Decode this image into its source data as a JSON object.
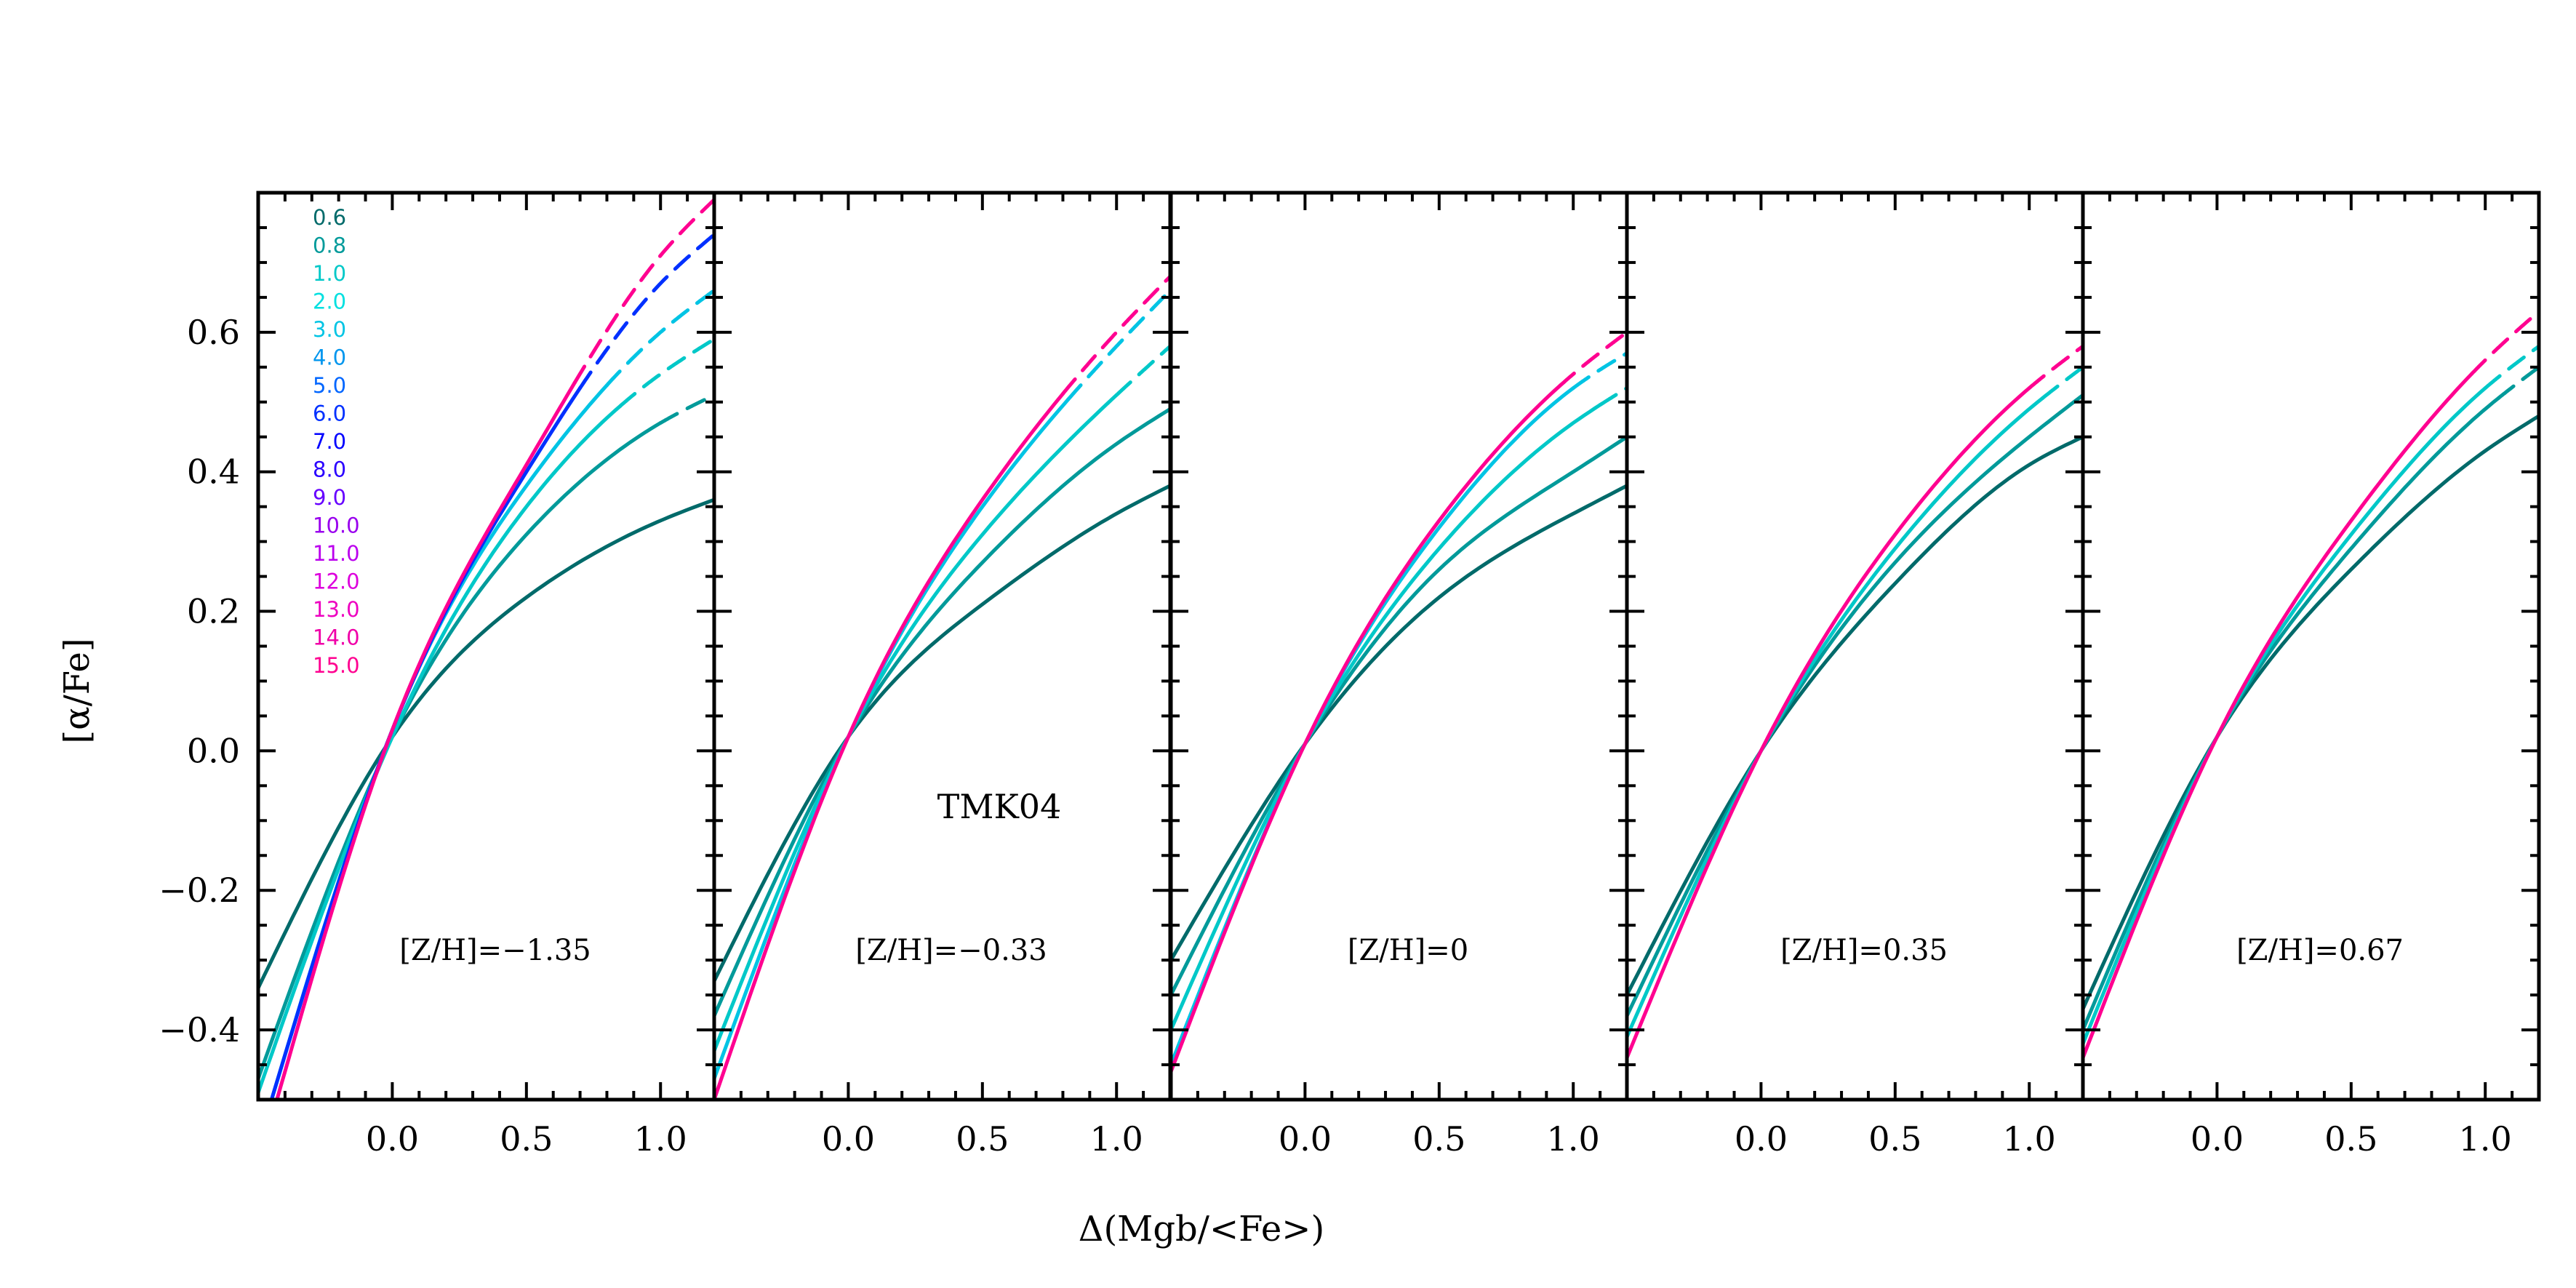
{
  "chart_data": {
    "type": "line",
    "xlabel": "Δ(Mgb/<Fe>)",
    "ylabel": "[α/Fe]",
    "xlim": [
      -0.5,
      1.2
    ],
    "ylim": [
      -0.5,
      0.8
    ],
    "xticks": [
      0.0,
      0.5,
      1.0
    ],
    "xtick_labels": [
      "0.0",
      "0.5",
      "1.0"
    ],
    "yticks": [
      -0.4,
      -0.2,
      0.0,
      0.2,
      0.4,
      0.6
    ],
    "ytick_labels": [
      "−0.4",
      "−0.2",
      "0.0",
      "0.2",
      "0.4",
      "0.6"
    ],
    "annotation": "TMK04",
    "legend": {
      "placement": "top-left",
      "entries": [
        "0.6",
        "0.8",
        "1.0",
        "2.0",
        "3.0",
        "4.0",
        "5.0",
        "6.0",
        "7.0",
        "8.0",
        "9.0",
        "10.0",
        "11.0",
        "12.0",
        "13.0",
        "14.0",
        "15.0"
      ],
      "colors": [
        "#006a6a",
        "#009a9a",
        "#00c8c8",
        "#00e0e0",
        "#00c4e4",
        "#0096ee",
        "#0066ff",
        "#0030ff",
        "#0000ff",
        "#2a00ff",
        "#6600ff",
        "#9900ee",
        "#bb00ee",
        "#dd00dd",
        "#ee00c0",
        "#f000a8",
        "#ff0090"
      ]
    },
    "panels": [
      {
        "label": "[Z/H]=−1.35",
        "series": [
          {
            "name": "0.6",
            "points": [
              [
                -0.5,
                -0.34
              ],
              [
                0.0,
                0.02
              ],
              [
                0.5,
                0.22
              ],
              [
                1.0,
                0.33
              ],
              [
                1.2,
                0.36
              ]
            ],
            "dashed_from_x": null
          },
          {
            "name": "0.8",
            "points": [
              [
                -0.5,
                -0.47
              ],
              [
                0.0,
                0.02
              ],
              [
                0.5,
                0.31
              ],
              [
                1.0,
                0.47
              ],
              [
                1.2,
                0.51
              ]
            ],
            "dashed_from_x": 1.0
          },
          {
            "name": "1.0",
            "points": [
              [
                -0.5,
                -0.49
              ],
              [
                0.0,
                0.02
              ],
              [
                0.5,
                0.35
              ],
              [
                1.0,
                0.54
              ],
              [
                1.2,
                0.59
              ]
            ],
            "dashed_from_x": 0.85
          },
          {
            "name": "3.0",
            "points": [
              [
                -0.45,
                -0.5
              ],
              [
                0.0,
                0.03
              ],
              [
                0.5,
                0.38
              ],
              [
                1.0,
                0.6
              ],
              [
                1.2,
                0.66
              ]
            ],
            "dashed_from_x": 0.8
          },
          {
            "name": "6.0",
            "points": [
              [
                -0.45,
                -0.5
              ],
              [
                0.0,
                0.03
              ],
              [
                0.5,
                0.4
              ],
              [
                1.0,
                0.67
              ],
              [
                1.2,
                0.74
              ]
            ],
            "dashed_from_x": 0.7
          },
          {
            "name": "15.0",
            "points": [
              [
                -0.43,
                -0.5
              ],
              [
                0.0,
                0.03
              ],
              [
                0.5,
                0.41
              ],
              [
                1.0,
                0.71
              ],
              [
                1.2,
                0.79
              ]
            ],
            "dashed_from_x": 0.68
          }
        ]
      },
      {
        "label": "[Z/H]=−0.33",
        "series": [
          {
            "name": "0.6",
            "points": [
              [
                -0.5,
                -0.33
              ],
              [
                0.0,
                0.02
              ],
              [
                0.5,
                0.21
              ],
              [
                1.0,
                0.34
              ],
              [
                1.2,
                0.38
              ]
            ],
            "dashed_from_x": null
          },
          {
            "name": "0.8",
            "points": [
              [
                -0.5,
                -0.38
              ],
              [
                0.0,
                0.02
              ],
              [
                0.5,
                0.27
              ],
              [
                1.0,
                0.44
              ],
              [
                1.2,
                0.49
              ]
            ],
            "dashed_from_x": null
          },
          {
            "name": "1.0",
            "points": [
              [
                -0.5,
                -0.43
              ],
              [
                0.0,
                0.02
              ],
              [
                0.5,
                0.31
              ],
              [
                1.0,
                0.51
              ],
              [
                1.2,
                0.58
              ]
            ],
            "dashed_from_x": 1.0
          },
          {
            "name": "3.0",
            "points": [
              [
                -0.5,
                -0.47
              ],
              [
                0.0,
                0.02
              ],
              [
                0.5,
                0.35
              ],
              [
                1.0,
                0.58
              ],
              [
                1.2,
                0.66
              ]
            ],
            "dashed_from_x": 0.82
          },
          {
            "name": "15.0",
            "points": [
              [
                -0.5,
                -0.5
              ],
              [
                0.0,
                0.02
              ],
              [
                0.5,
                0.36
              ],
              [
                1.0,
                0.6
              ],
              [
                1.2,
                0.68
              ]
            ],
            "dashed_from_x": 0.8
          }
        ]
      },
      {
        "label": "[Z/H]=0",
        "series": [
          {
            "name": "0.6",
            "points": [
              [
                -0.5,
                -0.3
              ],
              [
                0.0,
                0.01
              ],
              [
                0.5,
                0.22
              ],
              [
                1.0,
                0.34
              ],
              [
                1.2,
                0.38
              ]
            ],
            "dashed_from_x": null
          },
          {
            "name": "0.8",
            "points": [
              [
                -0.5,
                -0.35
              ],
              [
                0.0,
                0.01
              ],
              [
                0.5,
                0.26
              ],
              [
                1.0,
                0.4
              ],
              [
                1.2,
                0.45
              ]
            ],
            "dashed_from_x": null
          },
          {
            "name": "1.0",
            "points": [
              [
                -0.5,
                -0.4
              ],
              [
                0.0,
                0.01
              ],
              [
                0.5,
                0.29
              ],
              [
                1.0,
                0.47
              ],
              [
                1.2,
                0.52
              ]
            ],
            "dashed_from_x": 1.1
          },
          {
            "name": "3.0",
            "points": [
              [
                -0.5,
                -0.45
              ],
              [
                0.0,
                0.01
              ],
              [
                0.5,
                0.32
              ],
              [
                1.0,
                0.52
              ],
              [
                1.2,
                0.57
              ]
            ],
            "dashed_from_x": 1.0
          },
          {
            "name": "15.0",
            "points": [
              [
                -0.5,
                -0.46
              ],
              [
                0.0,
                0.01
              ],
              [
                0.5,
                0.33
              ],
              [
                1.0,
                0.54
              ],
              [
                1.2,
                0.6
              ]
            ],
            "dashed_from_x": 0.95
          }
        ]
      },
      {
        "label": "[Z/H]=0.35",
        "series": [
          {
            "name": "0.6",
            "points": [
              [
                -0.5,
                -0.35
              ],
              [
                0.0,
                0.0
              ],
              [
                0.5,
                0.24
              ],
              [
                1.0,
                0.41
              ],
              [
                1.2,
                0.45
              ]
            ],
            "dashed_from_x": null
          },
          {
            "name": "0.8",
            "points": [
              [
                -0.5,
                -0.38
              ],
              [
                0.0,
                0.0
              ],
              [
                0.5,
                0.27
              ],
              [
                1.0,
                0.45
              ],
              [
                1.2,
                0.51
              ]
            ],
            "dashed_from_x": null
          },
          {
            "name": "1.0",
            "points": [
              [
                -0.5,
                -0.41
              ],
              [
                0.0,
                0.0
              ],
              [
                0.5,
                0.29
              ],
              [
                1.0,
                0.49
              ],
              [
                1.2,
                0.55
              ]
            ],
            "dashed_from_x": 1.05
          },
          {
            "name": "15.0",
            "points": [
              [
                -0.5,
                -0.44
              ],
              [
                0.0,
                0.0
              ],
              [
                0.5,
                0.31
              ],
              [
                1.0,
                0.52
              ],
              [
                1.2,
                0.58
              ]
            ],
            "dashed_from_x": 1.0
          }
        ]
      },
      {
        "label": "[Z/H]=0.67",
        "series": [
          {
            "name": "0.6",
            "points": [
              [
                -0.5,
                -0.37
              ],
              [
                0.0,
                0.02
              ],
              [
                0.5,
                0.26
              ],
              [
                1.0,
                0.43
              ],
              [
                1.2,
                0.48
              ]
            ],
            "dashed_from_x": null
          },
          {
            "name": "0.8",
            "points": [
              [
                -0.5,
                -0.4
              ],
              [
                0.0,
                0.02
              ],
              [
                0.5,
                0.29
              ],
              [
                1.0,
                0.49
              ],
              [
                1.2,
                0.55
              ]
            ],
            "dashed_from_x": 1.05
          },
          {
            "name": "1.0",
            "points": [
              [
                -0.5,
                -0.42
              ],
              [
                0.0,
                0.02
              ],
              [
                0.5,
                0.31
              ],
              [
                1.0,
                0.52
              ],
              [
                1.2,
                0.58
              ]
            ],
            "dashed_from_x": 1.0
          },
          {
            "name": "15.0",
            "points": [
              [
                -0.5,
                -0.44
              ],
              [
                0.0,
                0.02
              ],
              [
                0.5,
                0.33
              ],
              [
                1.0,
                0.56
              ],
              [
                1.2,
                0.63
              ]
            ],
            "dashed_from_x": 0.95
          }
        ]
      }
    ]
  }
}
